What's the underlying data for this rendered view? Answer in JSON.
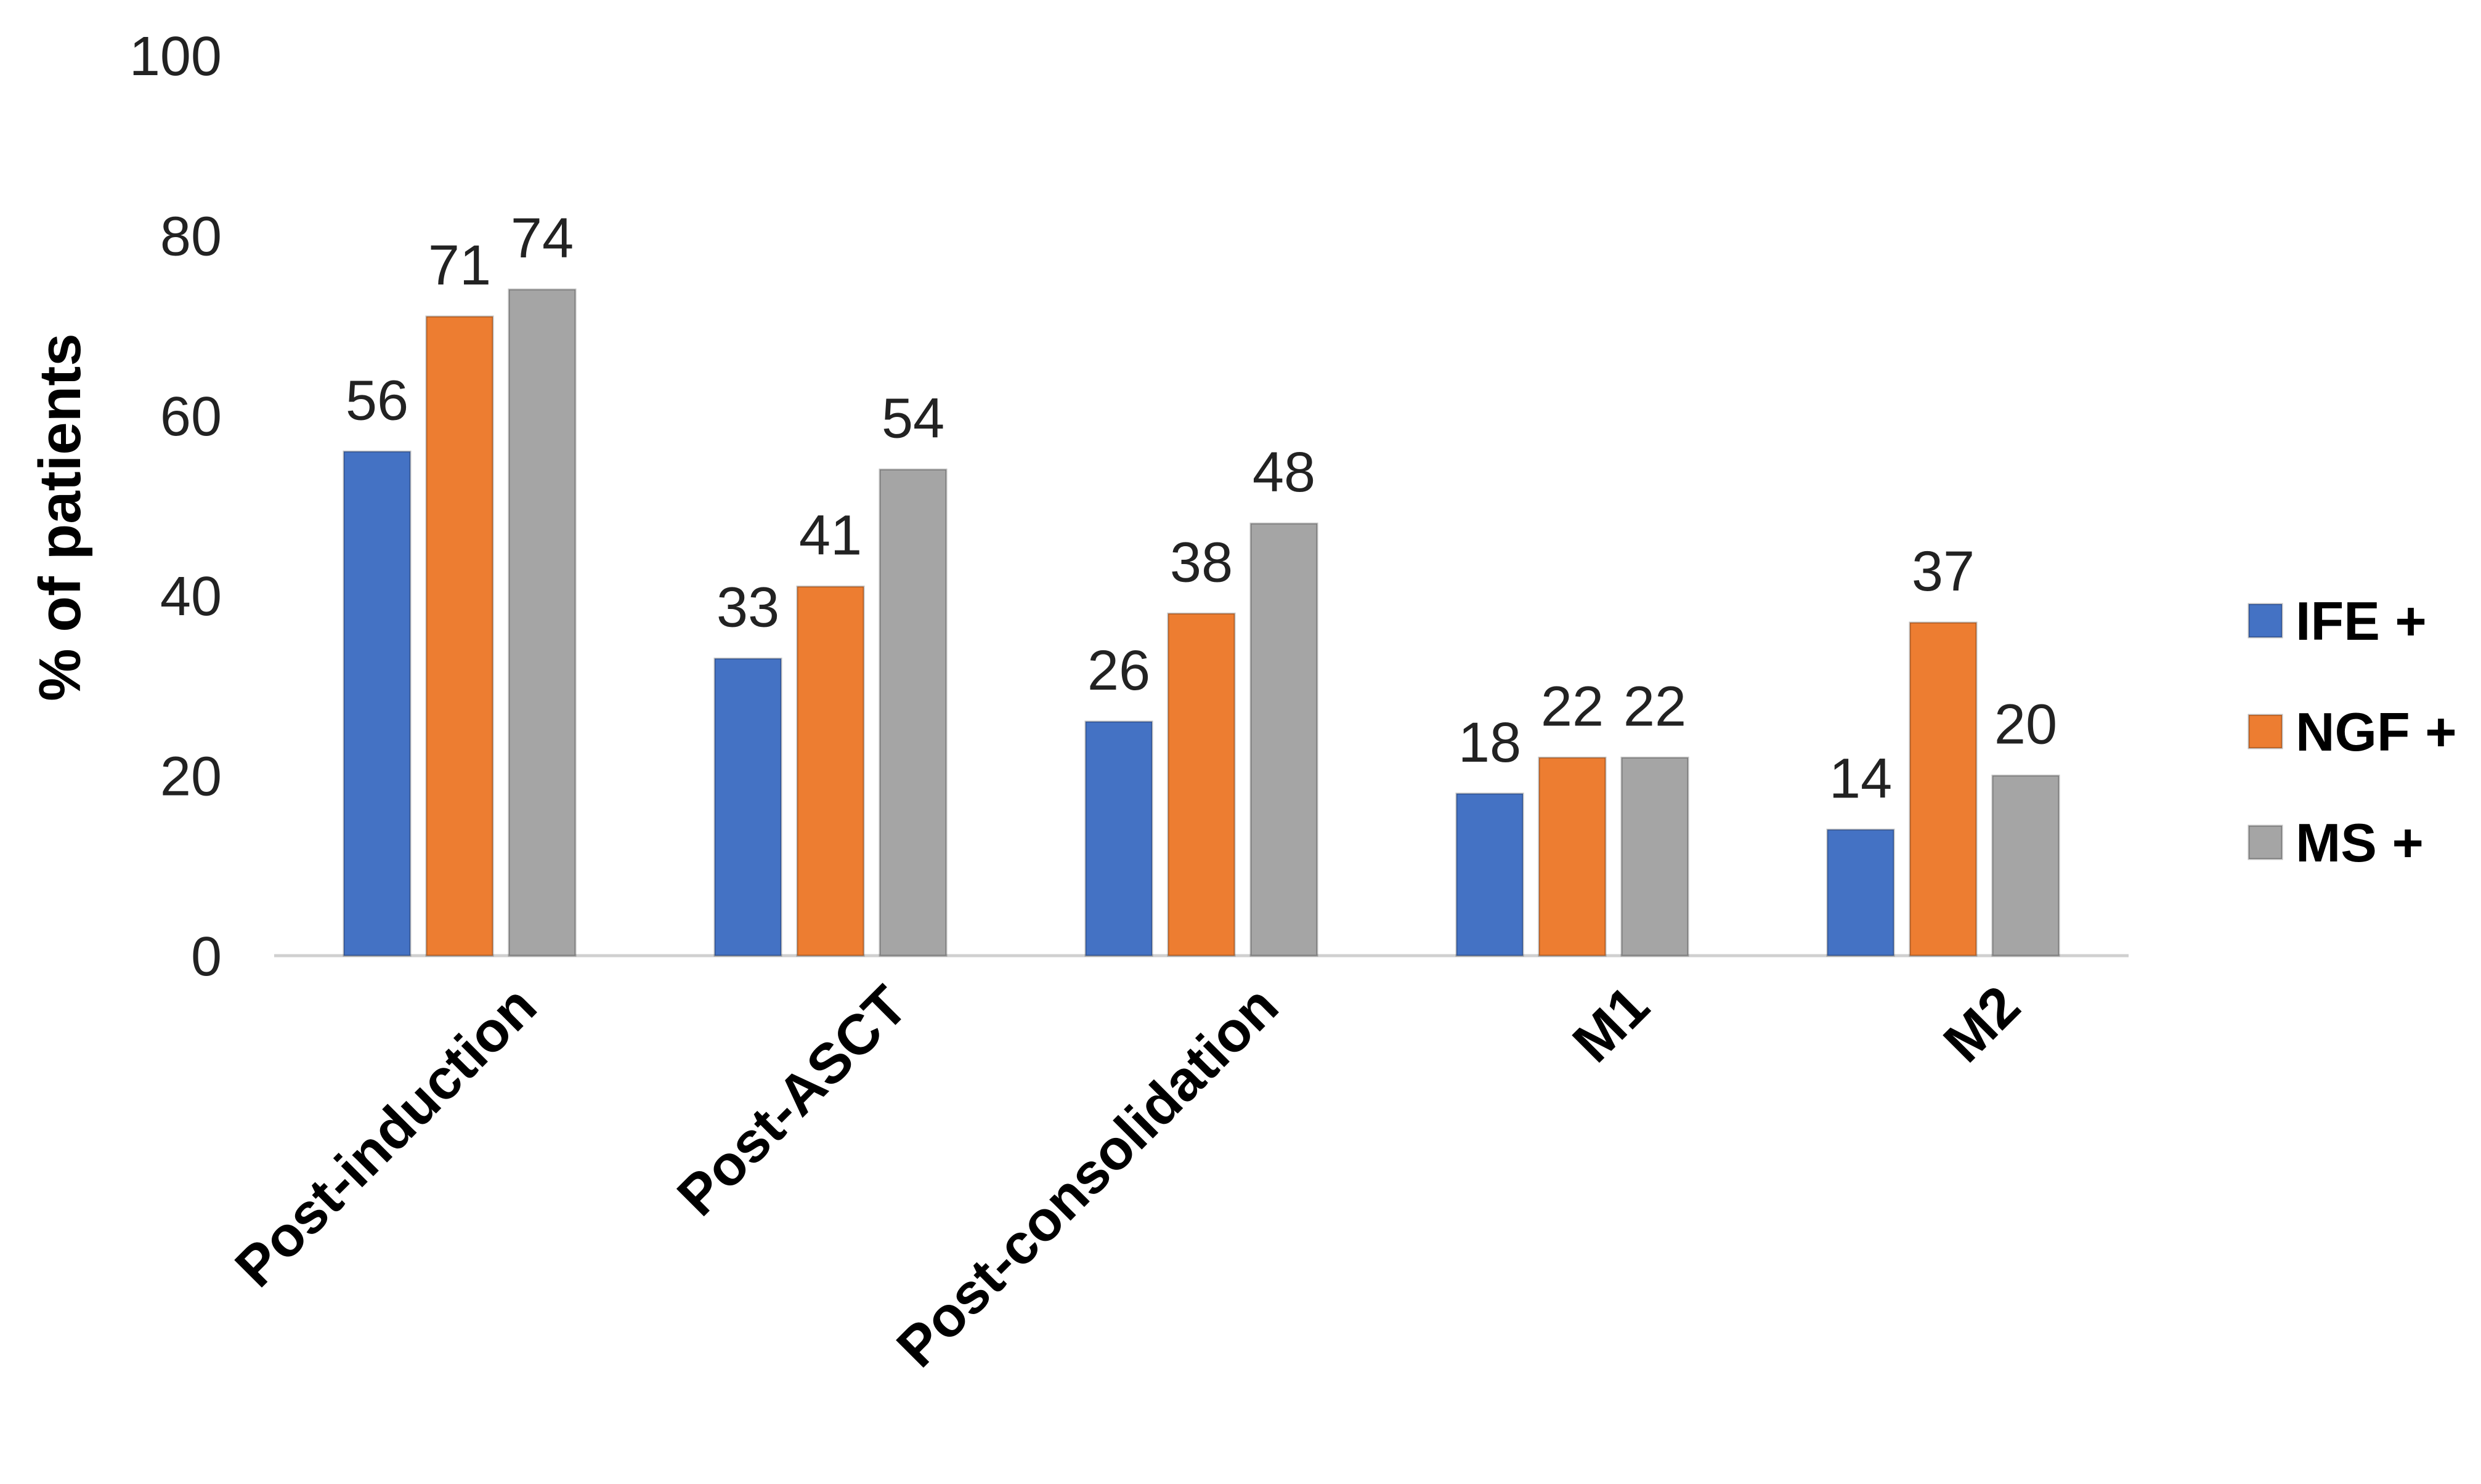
{
  "chart_data": {
    "type": "bar",
    "title": "",
    "xlabel": "",
    "ylabel": "% of patients",
    "ylim": [
      0,
      100
    ],
    "yticks": [
      0,
      20,
      40,
      60,
      80,
      100
    ],
    "grid": false,
    "legend_position": "right",
    "categories": [
      "Post-induction",
      "Post-ASCT",
      "Post-consolidation",
      "M1",
      "M2"
    ],
    "series": [
      {
        "name": "IFE +",
        "color": "#4472C4",
        "values": [
          56,
          33,
          26,
          18,
          14
        ]
      },
      {
        "name": "NGF +",
        "color": "#ED7D31",
        "values": [
          71,
          41,
          38,
          22,
          37
        ]
      },
      {
        "name": "MS +",
        "color": "#A5A5A5",
        "values": [
          74,
          54,
          48,
          22,
          20
        ]
      }
    ]
  }
}
